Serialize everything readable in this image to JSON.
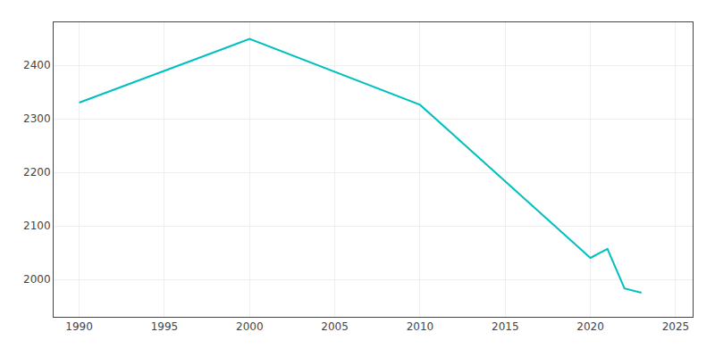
{
  "chart_data": {
    "type": "line",
    "x": [
      1990,
      2000,
      2010,
      2020,
      2021,
      2022,
      2023
    ],
    "values": [
      2330,
      2449,
      2326,
      2040,
      2057,
      1983,
      1975
    ],
    "color": "#00BFBF",
    "xlim": [
      1988.5,
      2026
    ],
    "xticks": [
      1990,
      1995,
      2000,
      2005,
      2010,
      2015,
      2020,
      2025
    ],
    "ylim": [
      1930,
      2480
    ],
    "yticks": [
      2000,
      2100,
      2200,
      2300,
      2400
    ],
    "grid": true
  }
}
